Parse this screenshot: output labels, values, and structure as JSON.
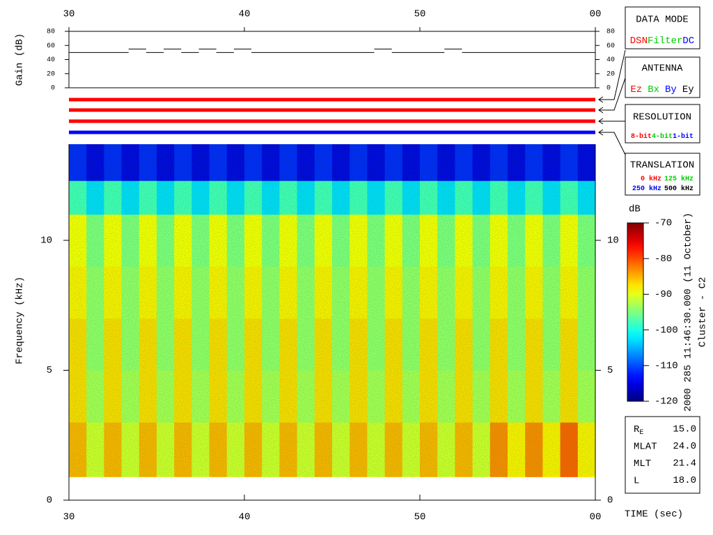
{
  "chart_data": [
    {
      "type": "step",
      "y_label": "Gain (dB)",
      "x_edges": [
        30,
        33.4,
        34.4,
        35.4,
        36.4,
        37.4,
        38.4,
        39.4,
        40.4,
        47.4,
        48.4,
        51.4,
        52.4,
        60
      ],
      "values": [
        50,
        55,
        50,
        55,
        50,
        55,
        50,
        55,
        50,
        55,
        50,
        55,
        50
      ],
      "xlim": [
        30,
        60
      ],
      "xticks": [
        30,
        40,
        50,
        {
          "value": 60,
          "label": "00"
        }
      ],
      "ylim": [
        0,
        80
      ],
      "yticks": [
        0,
        20,
        40,
        60,
        80
      ]
    },
    {
      "type": "heatmap",
      "x_label": "TIME (sec)",
      "y_label": "Frequency (kHz)",
      "x_edges": [
        30,
        31,
        32,
        33,
        34,
        35,
        36,
        37,
        38,
        39,
        40,
        41,
        42,
        43,
        44,
        45,
        46,
        47,
        48,
        49,
        50,
        51,
        52,
        53,
        54,
        55,
        56,
        57,
        58,
        59,
        60
      ],
      "y_edges": [
        0.9,
        3,
        5,
        7,
        9,
        11,
        12.3,
        13.7
      ],
      "z": [
        [
          -85,
          -91,
          -85,
          -91,
          -85,
          -91,
          -85,
          -91,
          -85,
          -91,
          -85,
          -91,
          -85,
          -91,
          -85,
          -91,
          -85,
          -91,
          -85,
          -91,
          -85,
          -91,
          -85,
          -91,
          -83,
          -88,
          -83,
          -88,
          -81,
          -88
        ],
        [
          -87,
          -93,
          -87,
          -93,
          -87,
          -93,
          -87,
          -93,
          -87,
          -93,
          -87,
          -93,
          -87,
          -93,
          -87,
          -93,
          -87,
          -93,
          -87,
          -93,
          -87,
          -93,
          -87,
          -93,
          -87,
          -93,
          -87,
          -93,
          -87,
          -93
        ],
        [
          -87,
          -94,
          -87,
          -94,
          -87,
          -94,
          -87,
          -94,
          -87,
          -94,
          -87,
          -94,
          -87,
          -94,
          -87,
          -94,
          -87,
          -94,
          -87,
          -94,
          -87,
          -94,
          -87,
          -94,
          -87,
          -94,
          -87,
          -94,
          -87,
          -94
        ],
        [
          -88,
          -94,
          -88,
          -94,
          -88,
          -94,
          -88,
          -94,
          -88,
          -94,
          -88,
          -94,
          -88,
          -94,
          -88,
          -94,
          -88,
          -94,
          -88,
          -94,
          -88,
          -94,
          -88,
          -94,
          -88,
          -94,
          -88,
          -94,
          -88,
          -94
        ],
        [
          -89,
          -95,
          -89,
          -95,
          -89,
          -95,
          -89,
          -95,
          -89,
          -95,
          -89,
          -95,
          -89,
          -95,
          -89,
          -95,
          -89,
          -95,
          -89,
          -95,
          -89,
          -95,
          -89,
          -95,
          -89,
          -95,
          -89,
          -95,
          -89,
          -95
        ],
        [
          -98,
          -103,
          -98,
          -103,
          -98,
          -103,
          -98,
          -103,
          -98,
          -103,
          -98,
          -103,
          -98,
          -103,
          -98,
          -103,
          -98,
          -103,
          -98,
          -103,
          -98,
          -103,
          -98,
          -103,
          -98,
          -103,
          -98,
          -103,
          -98,
          -103
        ],
        [
          -112,
          -115,
          -112,
          -115,
          -112,
          -115,
          -112,
          -115,
          -112,
          -115,
          -112,
          -115,
          -112,
          -115,
          -112,
          -115,
          -112,
          -115,
          -112,
          -115,
          -112,
          -115,
          -112,
          -115,
          -112,
          -115,
          -112,
          -115,
          -112,
          -115
        ]
      ],
      "xlim": [
        30,
        60
      ],
      "xticks": [
        30,
        40,
        50,
        {
          "value": 60,
          "label": "00"
        }
      ],
      "ylim": [
        0,
        13.7
      ],
      "yticks": [
        0,
        5,
        10
      ],
      "colorbar": {
        "label": "dB",
        "clim": [
          -120,
          -70
        ],
        "ticks": [
          -70,
          -80,
          -90,
          -100,
          -110,
          -120
        ]
      }
    }
  ],
  "side_labels": {
    "timestamp": "2000 285 11:46:30.000 (11 October)",
    "spacecraft": "Cluster - C2"
  },
  "data_mode": {
    "title": "DATA MODE",
    "items": [
      "DSN",
      "Filter",
      "DC"
    ]
  },
  "antenna": {
    "title": "ANTENNA",
    "items": [
      "Ez",
      "Bx",
      "By",
      "Ey"
    ]
  },
  "resolution": {
    "title": "RESOLUTION",
    "items": [
      "8-bit",
      "4-bit",
      "1-bit"
    ]
  },
  "translation": {
    "title": "TRANSLATION",
    "items": [
      "0 kHz",
      "125 kHz",
      "250 kHz",
      "500 kHz"
    ]
  },
  "ephemeris": [
    {
      "label": "R",
      "sub": "E",
      "value": "15.0"
    },
    {
      "label": "MLAT",
      "value": "24.0"
    },
    {
      "label": "MLT",
      "value": "21.4"
    },
    {
      "label": "L",
      "value": "18.0"
    }
  ]
}
